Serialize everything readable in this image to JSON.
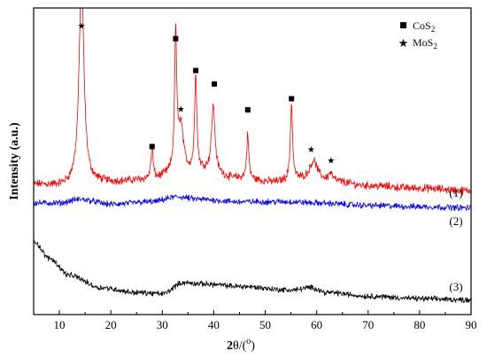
{
  "chart_data": {
    "type": "line",
    "xlabel_bold": "2",
    "xlabel_theta": "θ/(",
    "xlabel_degree": "o",
    "xlabel_close": ")",
    "ylabel": "Intensity (a.u.)",
    "xlim": [
      5,
      90
    ],
    "xticks": [
      "10",
      "20",
      "30",
      "40",
      "50",
      "60",
      "70",
      "80",
      "90"
    ],
    "legend": {
      "placement": "top-right",
      "items": [
        {
          "marker": "square",
          "main": "CoS",
          "sub": "2"
        },
        {
          "marker": "star",
          "main": "MoS",
          "sub": "2"
        }
      ]
    },
    "series": [
      {
        "label": "(1)",
        "color": "#ff0000",
        "baseline": [
          [
            5,
            0.23
          ],
          [
            10,
            0.225
          ],
          [
            20,
            0.24
          ],
          [
            28,
            0.25
          ],
          [
            32,
            0.27
          ],
          [
            38,
            0.285
          ],
          [
            44,
            0.255
          ],
          [
            52,
            0.24
          ],
          [
            56,
            0.25
          ],
          [
            62,
            0.245
          ],
          [
            70,
            0.225
          ],
          [
            80,
            0.215
          ],
          [
            90,
            0.205
          ]
        ],
        "peaks": [
          {
            "x": 14.3,
            "height": 0.86,
            "width": 0.55
          },
          {
            "x": 28.0,
            "height": 0.13,
            "width": 0.25
          },
          {
            "x": 32.6,
            "height": 0.56,
            "width": 0.25
          },
          {
            "x": 33.6,
            "height": 0.19,
            "width": 0.6
          },
          {
            "x": 36.5,
            "height": 0.4,
            "width": 0.25
          },
          {
            "x": 39.9,
            "height": 0.27,
            "width": 0.4
          },
          {
            "x": 46.6,
            "height": 0.18,
            "width": 0.25
          },
          {
            "x": 55.1,
            "height": 0.31,
            "width": 0.25
          },
          {
            "x": 59.4,
            "height": 0.08,
            "width": 0.9
          },
          {
            "x": 62.7,
            "height": 0.03,
            "width": 0.4
          }
        ],
        "noise": 0.013
      },
      {
        "label": "(2)",
        "color": "#0000ff",
        "baseline": [
          [
            5,
            0.155
          ],
          [
            10,
            0.155
          ],
          [
            14,
            0.17
          ],
          [
            20,
            0.15
          ],
          [
            28,
            0.16
          ],
          [
            33,
            0.18
          ],
          [
            37,
            0.17
          ],
          [
            45,
            0.16
          ],
          [
            55,
            0.16
          ],
          [
            60,
            0.155
          ],
          [
            70,
            0.145
          ],
          [
            80,
            0.14
          ],
          [
            90,
            0.135
          ]
        ],
        "peaks": [],
        "noise": 0.01
      },
      {
        "label": "(3)",
        "color": "#000000",
        "baseline": [
          [
            5,
            0.0
          ],
          [
            8,
            -0.07
          ],
          [
            12,
            -0.14
          ],
          [
            18,
            -0.19
          ],
          [
            25,
            -0.21
          ],
          [
            30,
            -0.215
          ],
          [
            34,
            -0.17
          ],
          [
            38,
            -0.175
          ],
          [
            45,
            -0.185
          ],
          [
            55,
            -0.2
          ],
          [
            59,
            -0.19
          ],
          [
            62,
            -0.21
          ],
          [
            70,
            -0.225
          ],
          [
            80,
            -0.235
          ],
          [
            90,
            -0.24
          ]
        ],
        "peaks": [],
        "noise": 0.009
      }
    ],
    "markers": [
      {
        "x": 14.3,
        "y": 0.88,
        "type": "star"
      },
      {
        "x": 28.0,
        "y": 0.385,
        "type": "square"
      },
      {
        "x": 32.6,
        "y": 0.825,
        "type": "square"
      },
      {
        "x": 33.6,
        "y": 0.54,
        "type": "star"
      },
      {
        "x": 36.5,
        "y": 0.695,
        "type": "square"
      },
      {
        "x": 40.1,
        "y": 0.64,
        "type": "square"
      },
      {
        "x": 46.6,
        "y": 0.535,
        "type": "square"
      },
      {
        "x": 55.1,
        "y": 0.58,
        "type": "square"
      },
      {
        "x": 58.9,
        "y": 0.375,
        "type": "star"
      },
      {
        "x": 62.8,
        "y": 0.33,
        "type": "star"
      }
    ],
    "ylim": [
      -0.3,
      0.95
    ]
  }
}
